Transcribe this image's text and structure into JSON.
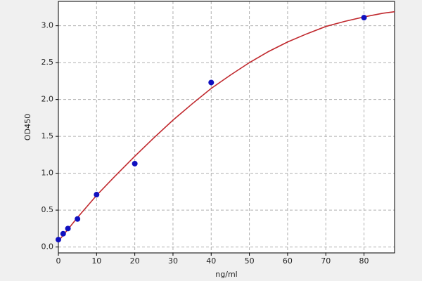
{
  "chart_data": {
    "type": "scatter",
    "x_label": "ng/ml",
    "y_label": "OD450",
    "xlim": [
      0,
      88
    ],
    "ylim": [
      -0.08,
      3.33
    ],
    "xticks": [
      0,
      10,
      20,
      30,
      40,
      50,
      60,
      70,
      80
    ],
    "yticks": [
      {
        "value": 0,
        "label": "0.0"
      },
      0.5,
      {
        "value": 1,
        "label": "1.0"
      },
      1.5,
      {
        "value": 2,
        "label": "2.0"
      },
      2.5,
      {
        "value": 3,
        "label": "3.0"
      }
    ],
    "grid": true,
    "series": [
      {
        "color": "#1010c0",
        "x": [
          0,
          1.25,
          2.5,
          5,
          10,
          20,
          40,
          80
        ],
        "values": [
          0.1,
          0.18,
          0.25,
          0.38,
          0.71,
          1.13,
          2.23,
          3.11
        ]
      },
      {
        "color": "#c0282d",
        "line": true,
        "x": [
          0,
          5,
          10,
          15,
          20,
          25,
          30,
          35,
          40,
          45,
          50,
          55,
          60,
          65,
          70,
          75,
          80,
          85,
          88
        ],
        "values": [
          0.08,
          0.4,
          0.7,
          0.97,
          1.23,
          1.48,
          1.72,
          1.94,
          2.15,
          2.33,
          2.5,
          2.65,
          2.78,
          2.89,
          2.99,
          3.06,
          3.12,
          3.17,
          3.19
        ]
      }
    ]
  }
}
